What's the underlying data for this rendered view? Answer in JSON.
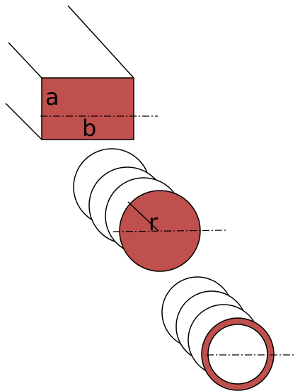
{
  "figure": {
    "fill_color": "#c0504d",
    "stroke_color": "#000000",
    "background": "#ffffff"
  },
  "rectangular_bar": {
    "height_label": "a",
    "width_label": "b"
  },
  "solid_round_bar": {
    "radius_label": "r"
  },
  "hollow_tube": {}
}
